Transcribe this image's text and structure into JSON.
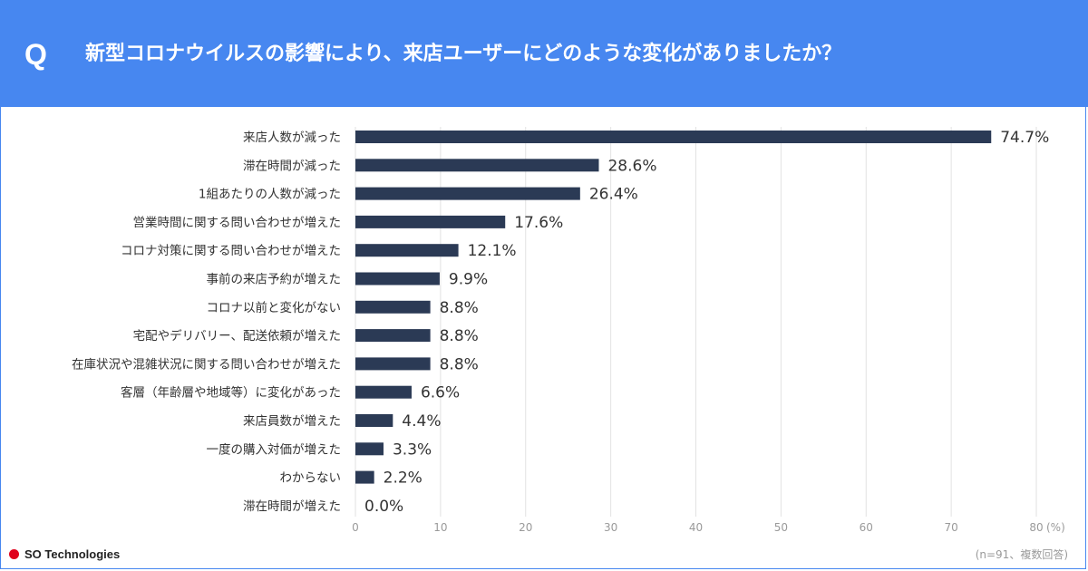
{
  "header": {
    "q_mark": "Q",
    "question": "新型コロナウイルスの影響により、来店ユーザーにどのような変化がありましたか？",
    "bg_color": "#4787f0"
  },
  "chart_data": {
    "type": "bar",
    "orientation": "horizontal",
    "categories": [
      "来店人数が減った",
      "滞在時間が減った",
      "1組あたりの人数が減った",
      "営業時間に関する問い合わせが増えた",
      "コロナ対策に関する問い合わせが増えた",
      "事前の来店予約が増えた",
      "コロナ以前と変化がない",
      "宅配やデリバリー、配送依頼が増えた",
      "在庫状況や混雑状況に関する問い合わせが増えた",
      "客層（年齢層や地域等）に変化があった",
      "来店員数が増えた",
      "一度の購入対価が増えた",
      "わからない",
      "滞在時間が増えた"
    ],
    "values": [
      74.7,
      28.6,
      26.4,
      17.6,
      12.1,
      9.9,
      8.8,
      8.8,
      8.8,
      6.6,
      4.4,
      3.3,
      2.2,
      0.0
    ],
    "value_labels": [
      "74.7%",
      "28.6%",
      "26.4%",
      "17.6%",
      "12.1%",
      "9.9%",
      "8.8%",
      "8.8%",
      "8.8%",
      "6.6%",
      "4.4%",
      "3.3%",
      "2.2%",
      "0.0%"
    ],
    "xlim": [
      0,
      80
    ],
    "x_ticks": [
      0,
      10,
      20,
      30,
      40,
      50,
      60,
      70,
      80
    ],
    "x_tick_labels": [
      "0",
      "10",
      "20",
      "30",
      "40",
      "50",
      "60",
      "70",
      "80"
    ],
    "x_unit": "(%)",
    "grid": true,
    "bar_color": "#2b3a55",
    "grid_color": "#e2e2e2"
  },
  "footer": {
    "brand": "SO Technologies",
    "brand_dot_color": "#e0001b",
    "note": "(n=91、複数回答)"
  }
}
